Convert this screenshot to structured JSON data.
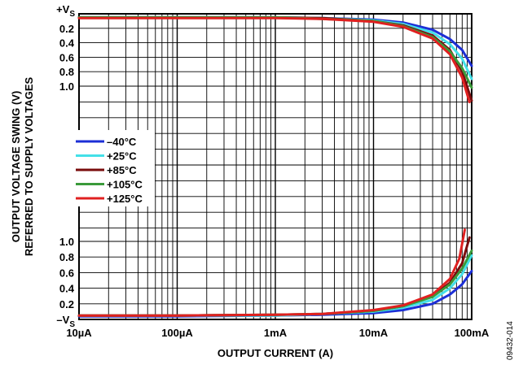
{
  "chart_data": {
    "type": "line",
    "xlabel": "OUTPUT CURRENT (A)",
    "ylabel_line1": "OUTPUT VOLTAGE SWING (V)",
    "ylabel_line2": "REFERRED TO SUPPLY VOLTAGES",
    "x_scale": "log",
    "xlim": [
      1e-05,
      0.1
    ],
    "x_ticks": [
      {
        "value": 1e-05,
        "label": "10µA"
      },
      {
        "value": 0.0001,
        "label": "100µA"
      },
      {
        "value": 0.001,
        "label": "1mA"
      },
      {
        "value": 0.01,
        "label": "10mA"
      },
      {
        "value": 0.1,
        "label": "100mA"
      }
    ],
    "top_axis": {
      "ref_label": "+V",
      "ref_sub": "S",
      "ticks": [
        {
          "value": 0.2,
          "label": "0.2"
        },
        {
          "value": 0.4,
          "label": "0.4"
        },
        {
          "value": 0.6,
          "label": "0.6"
        },
        {
          "value": 0.8,
          "label": "0.8"
        },
        {
          "value": 1.0,
          "label": "1.0"
        }
      ]
    },
    "bottom_axis": {
      "ref_label": "–V",
      "ref_sub": "S",
      "ticks": [
        {
          "value": 1.0,
          "label": "1.0"
        },
        {
          "value": 0.8,
          "label": "0.8"
        },
        {
          "value": 0.6,
          "label": "0.6"
        },
        {
          "value": 0.4,
          "label": "0.4"
        },
        {
          "value": 0.2,
          "label": "0.2"
        }
      ]
    },
    "grid": true,
    "legend_position": "center-left",
    "series": [
      {
        "name": "–40°C",
        "color": "#1c2fd6",
        "top_points": [
          [
            1e-05,
            0.05
          ],
          [
            0.0001,
            0.05
          ],
          [
            0.001,
            0.05
          ],
          [
            0.003,
            0.06
          ],
          [
            0.01,
            0.08
          ],
          [
            0.02,
            0.12
          ],
          [
            0.04,
            0.22
          ],
          [
            0.06,
            0.35
          ],
          [
            0.08,
            0.5
          ],
          [
            0.1,
            0.72
          ]
        ],
        "bottom_points": [
          [
            1e-05,
            0.04
          ],
          [
            0.0001,
            0.04
          ],
          [
            0.001,
            0.05
          ],
          [
            0.003,
            0.06
          ],
          [
            0.01,
            0.08
          ],
          [
            0.02,
            0.12
          ],
          [
            0.04,
            0.2
          ],
          [
            0.06,
            0.32
          ],
          [
            0.08,
            0.45
          ],
          [
            0.1,
            0.62
          ]
        ]
      },
      {
        "name": "+25°C",
        "color": "#44e0e8",
        "top_points": [
          [
            1e-05,
            0.05
          ],
          [
            0.0001,
            0.05
          ],
          [
            0.001,
            0.05
          ],
          [
            0.003,
            0.06
          ],
          [
            0.01,
            0.09
          ],
          [
            0.02,
            0.14
          ],
          [
            0.04,
            0.26
          ],
          [
            0.06,
            0.42
          ],
          [
            0.08,
            0.62
          ],
          [
            0.1,
            0.9
          ]
        ],
        "bottom_points": [
          [
            1e-05,
            0.05
          ],
          [
            0.0001,
            0.05
          ],
          [
            0.001,
            0.05
          ],
          [
            0.003,
            0.07
          ],
          [
            0.01,
            0.1
          ],
          [
            0.02,
            0.15
          ],
          [
            0.04,
            0.25
          ],
          [
            0.06,
            0.4
          ],
          [
            0.08,
            0.58
          ],
          [
            0.1,
            0.82
          ]
        ]
      },
      {
        "name": "+85°C",
        "color": "#7a0c0c",
        "top_points": [
          [
            1e-05,
            0.05
          ],
          [
            0.0001,
            0.05
          ],
          [
            0.001,
            0.05
          ],
          [
            0.003,
            0.06
          ],
          [
            0.01,
            0.1
          ],
          [
            0.02,
            0.16
          ],
          [
            0.04,
            0.3
          ],
          [
            0.06,
            0.5
          ],
          [
            0.08,
            0.8
          ],
          [
            0.1,
            1.2
          ]
        ],
        "bottom_points": [
          [
            1e-05,
            0.05
          ],
          [
            0.0001,
            0.05
          ],
          [
            0.001,
            0.06
          ],
          [
            0.003,
            0.07
          ],
          [
            0.01,
            0.11
          ],
          [
            0.02,
            0.17
          ],
          [
            0.04,
            0.3
          ],
          [
            0.06,
            0.47
          ],
          [
            0.08,
            0.72
          ],
          [
            0.095,
            1.05
          ]
        ]
      },
      {
        "name": "+105°C",
        "color": "#3a9a3a",
        "top_points": [
          [
            1e-05,
            0.05
          ],
          [
            0.0001,
            0.05
          ],
          [
            0.001,
            0.05
          ],
          [
            0.003,
            0.07
          ],
          [
            0.01,
            0.1
          ],
          [
            0.02,
            0.17
          ],
          [
            0.04,
            0.32
          ],
          [
            0.06,
            0.52
          ],
          [
            0.08,
            0.75
          ],
          [
            0.1,
            1.02
          ]
        ],
        "bottom_points": [
          [
            1e-05,
            0.05
          ],
          [
            0.0001,
            0.05
          ],
          [
            0.001,
            0.06
          ],
          [
            0.003,
            0.07
          ],
          [
            0.01,
            0.11
          ],
          [
            0.02,
            0.17
          ],
          [
            0.04,
            0.29
          ],
          [
            0.06,
            0.45
          ],
          [
            0.08,
            0.65
          ],
          [
            0.1,
            0.88
          ]
        ]
      },
      {
        "name": "+125°C",
        "color": "#e02020",
        "top_points": [
          [
            1e-05,
            0.06
          ],
          [
            0.0001,
            0.06
          ],
          [
            0.001,
            0.06
          ],
          [
            0.003,
            0.07
          ],
          [
            0.01,
            0.11
          ],
          [
            0.02,
            0.18
          ],
          [
            0.04,
            0.34
          ],
          [
            0.06,
            0.56
          ],
          [
            0.08,
            0.88
          ],
          [
            0.095,
            1.22
          ]
        ],
        "bottom_points": [
          [
            1e-05,
            0.05
          ],
          [
            0.0001,
            0.05
          ],
          [
            0.001,
            0.06
          ],
          [
            0.003,
            0.07
          ],
          [
            0.01,
            0.12
          ],
          [
            0.02,
            0.18
          ],
          [
            0.04,
            0.32
          ],
          [
            0.06,
            0.52
          ],
          [
            0.075,
            0.78
          ],
          [
            0.085,
            1.15
          ]
        ]
      }
    ]
  },
  "figure_id": "09432-014"
}
